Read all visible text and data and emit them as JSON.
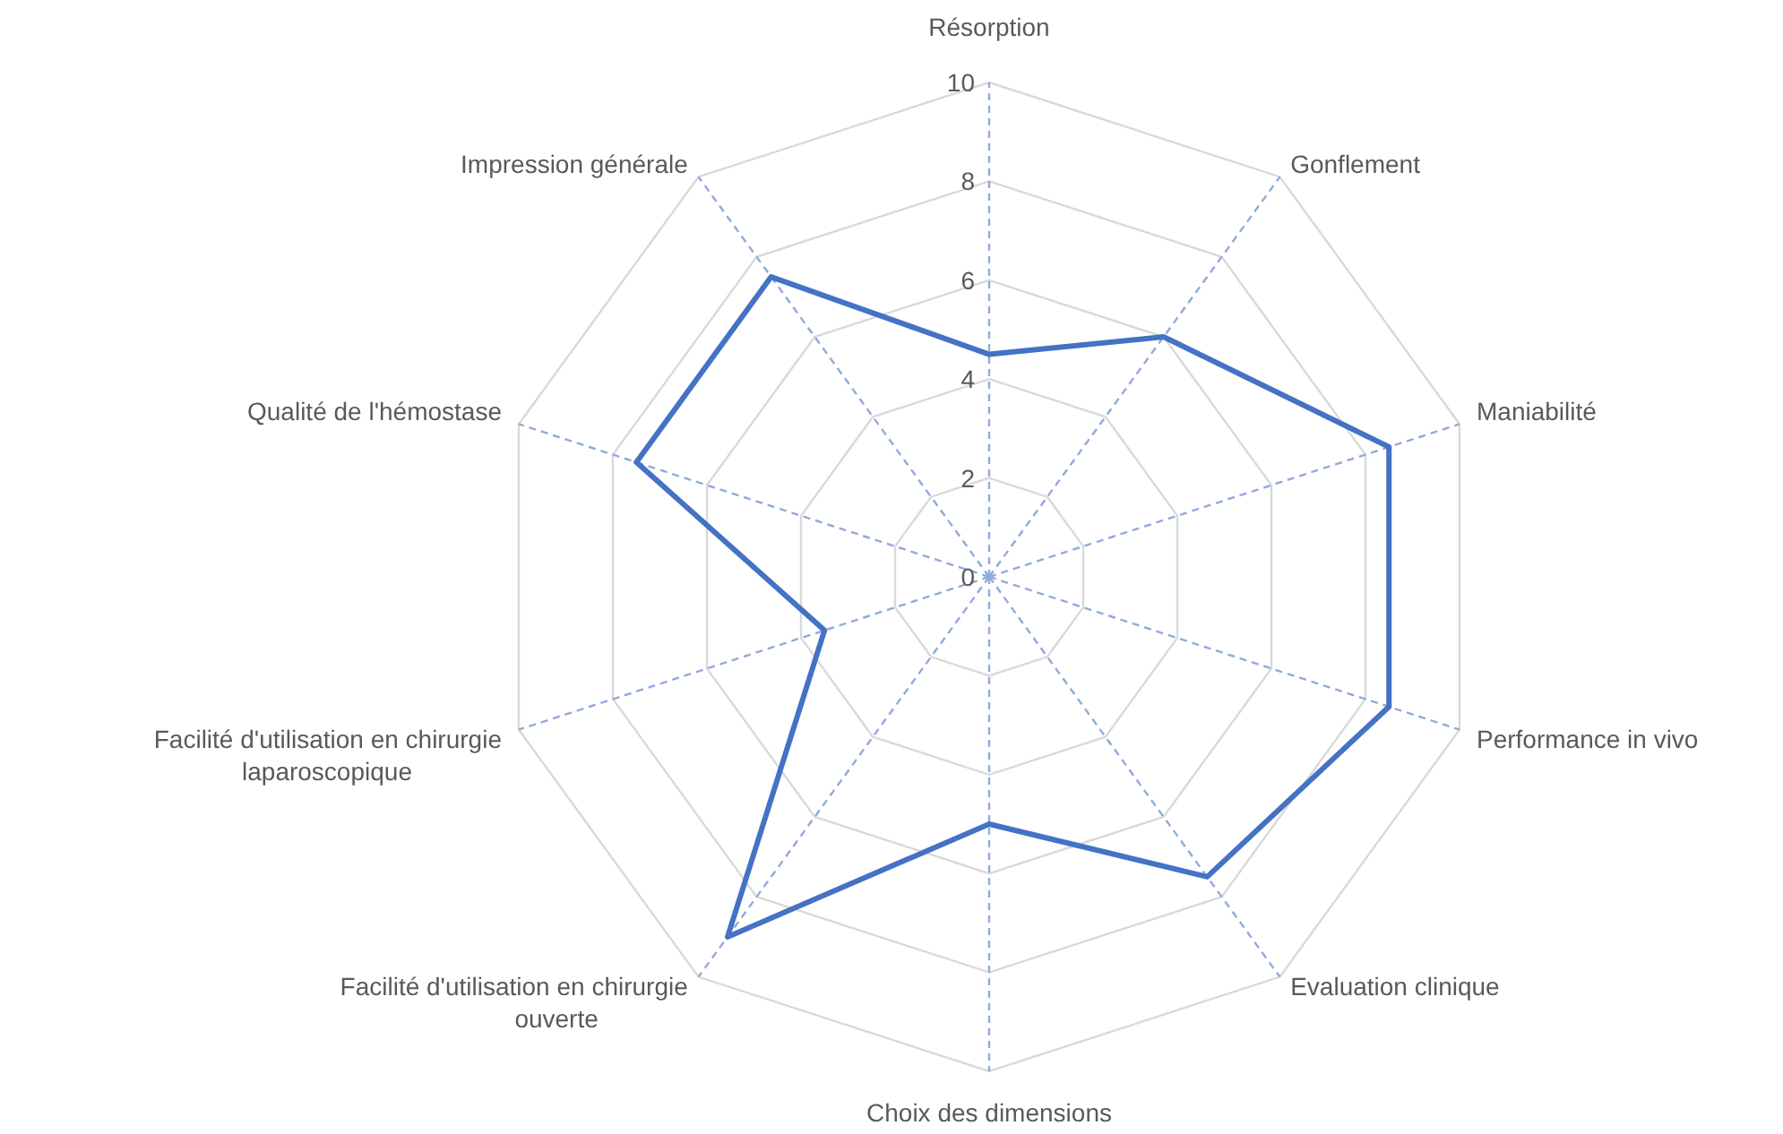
{
  "chart_data": {
    "type": "radar",
    "categories": [
      "Résorption",
      "Gonflement",
      "Maniabilité",
      "Performance in vivo",
      "Evaluation clinique",
      "Choix des dimensions",
      "Facilité d'utilisation en chirurgie ouverte",
      "Facilité d'utilisation en chirurgie laparoscopique",
      "Qualité de l'hémostase",
      "Impression générale"
    ],
    "series": [
      {
        "color": "#4472c4",
        "values": [
          4.5,
          6,
          8.5,
          8.5,
          7.5,
          5,
          9,
          3.5,
          7.5,
          7.5
        ]
      }
    ],
    "ylim": [
      0,
      10
    ],
    "yticks": [
      0,
      2,
      4,
      6,
      8,
      10
    ],
    "grid": true
  }
}
